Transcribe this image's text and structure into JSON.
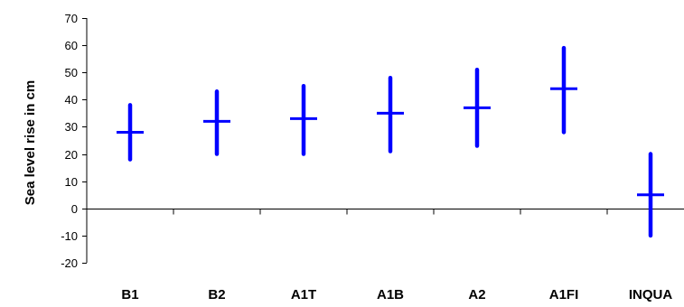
{
  "chart_data": {
    "type": "range",
    "title": "",
    "xlabel": "",
    "ylabel": "Sea level rise in cm",
    "ylim": [
      -20,
      70
    ],
    "yticks": [
      70,
      60,
      50,
      40,
      30,
      20,
      10,
      0,
      -10,
      -20
    ],
    "grid": false,
    "categories": [
      "B1",
      "B2",
      "A1T",
      "A1B",
      "A2",
      "A1FI",
      "INQUA"
    ],
    "series": [
      {
        "low": [
          18,
          20,
          20,
          21,
          23,
          28,
          -10
        ],
        "high": [
          38,
          43,
          45,
          48,
          51,
          59,
          20
        ],
        "mid": [
          28,
          32,
          33,
          35,
          37,
          44,
          5
        ]
      }
    ],
    "color": "#0000ff"
  }
}
